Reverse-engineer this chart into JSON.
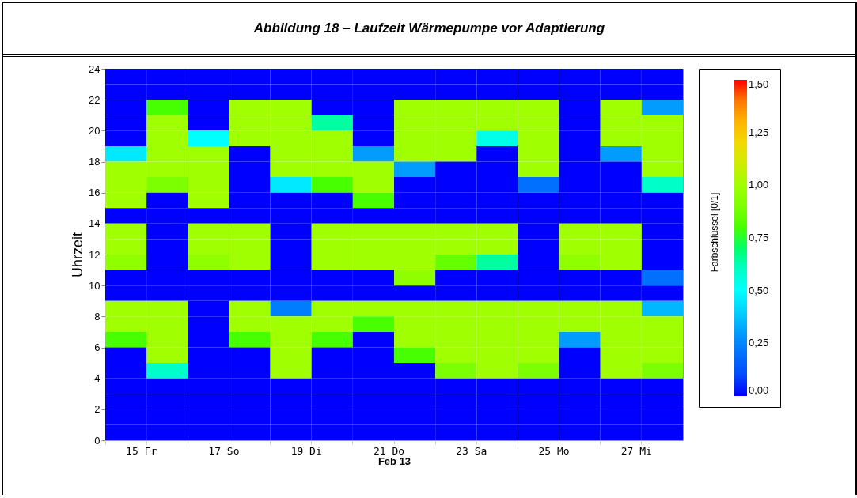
{
  "chart_data": {
    "type": "heatmap",
    "title": "Abbildung 18 – Laufzeit Wärmepumpe vor Adaptierung",
    "xlabel": "Feb 13",
    "ylabel": "Uhrzeit",
    "clabel": "Farbschlüssel [0/1]",
    "categories": [
      "15 Fr",
      null,
      "17 So",
      null,
      "19 Di",
      null,
      "21 Do",
      null,
      "23 Sa",
      null,
      "25 Mo",
      null,
      "27 Mi",
      null
    ],
    "ylim": [
      0,
      24
    ],
    "yticks": [
      0,
      2,
      4,
      6,
      8,
      10,
      12,
      14,
      16,
      18,
      20,
      22,
      24
    ],
    "clim": [
      0,
      1.5
    ],
    "cticks": [
      {
        "value": 0,
        "label": "0,00"
      },
      {
        "value": 0.25,
        "label": "0,25"
      },
      {
        "value": 0.5,
        "label": "0,50"
      },
      {
        "value": 0.75,
        "label": "0,75"
      },
      {
        "value": 1,
        "label": "1,00"
      },
      {
        "value": 1.25,
        "label": "1,25"
      },
      {
        "value": 1.5,
        "label": "1,50"
      }
    ],
    "cells": [
      [
        0,
        0,
        0,
        0,
        0,
        0,
        0,
        0,
        0,
        0,
        0,
        0,
        0,
        0
      ],
      [
        0,
        0,
        0,
        0,
        0,
        0,
        0,
        0,
        0,
        0,
        0,
        0,
        0,
        0
      ],
      [
        0,
        0.8,
        0,
        1,
        1,
        0,
        0,
        1,
        1,
        1,
        1,
        0,
        1,
        0.3
      ],
      [
        0,
        1,
        0,
        1,
        1,
        0.65,
        0,
        1,
        1,
        1,
        1,
        0,
        1,
        1
      ],
      [
        0,
        1,
        0.5,
        1,
        1,
        1,
        0,
        1,
        1,
        0.55,
        1,
        0,
        1,
        1
      ],
      [
        0.45,
        1,
        1,
        0,
        1,
        1,
        0.3,
        1,
        1,
        0,
        1,
        0,
        0.3,
        1
      ],
      [
        1,
        1,
        1,
        0,
        1,
        1,
        1,
        0.3,
        0,
        0,
        1,
        0,
        0,
        1
      ],
      [
        1,
        0.9,
        1,
        0,
        0.45,
        0.8,
        1,
        0,
        0,
        0,
        0.2,
        0,
        0,
        0.6
      ],
      [
        1,
        0,
        1,
        0,
        0,
        0,
        0.8,
        0,
        0,
        0,
        0,
        0,
        0,
        0
      ],
      [
        0,
        0,
        0,
        0,
        0,
        0,
        0,
        0,
        0,
        0,
        0,
        0,
        0,
        0
      ],
      [
        1,
        0,
        1,
        1,
        0,
        1,
        1,
        1,
        1,
        1,
        0,
        1,
        1,
        0
      ],
      [
        1,
        0,
        1,
        1,
        0,
        1,
        1,
        1,
        1,
        1,
        0,
        1,
        1,
        0
      ],
      [
        0.95,
        0,
        0.95,
        1,
        0,
        1,
        1,
        1,
        0.85,
        0.65,
        0,
        0.95,
        1,
        0
      ],
      [
        0,
        0,
        0,
        0,
        0,
        0,
        0,
        0.95,
        0,
        0,
        0,
        0,
        0,
        0.2
      ],
      [
        0,
        0,
        0,
        0,
        0,
        0,
        0,
        0,
        0,
        0,
        0,
        0,
        0,
        0
      ],
      [
        1,
        1,
        0,
        1,
        0.24,
        1,
        1,
        1,
        1,
        1,
        1,
        1,
        1,
        0.35
      ],
      [
        1,
        1,
        0,
        1,
        1,
        1,
        0.8,
        1,
        1,
        1,
        1,
        1,
        1,
        1
      ],
      [
        0.8,
        1,
        0,
        0.8,
        1,
        0.8,
        0,
        1,
        1,
        1,
        1,
        0.3,
        1,
        1
      ],
      [
        0,
        1,
        0,
        0,
        1,
        0,
        0,
        0.8,
        1,
        1,
        1,
        0,
        1,
        1
      ],
      [
        0,
        0.6,
        0,
        0,
        1,
        0,
        0,
        0,
        0.9,
        1,
        0.9,
        0,
        1,
        0.9
      ],
      [
        0,
        0,
        0,
        0,
        0,
        0,
        0,
        0,
        0,
        0,
        0,
        0,
        0,
        0
      ],
      [
        0,
        0,
        0,
        0,
        0,
        0,
        0,
        0,
        0,
        0,
        0,
        0,
        0,
        0
      ],
      [
        0,
        0,
        0,
        0,
        0,
        0,
        0,
        0,
        0,
        0,
        0,
        0,
        0,
        0
      ],
      [
        0,
        0,
        0,
        0,
        0,
        0,
        0,
        0,
        0,
        0,
        0,
        0,
        0,
        0
      ]
    ]
  }
}
